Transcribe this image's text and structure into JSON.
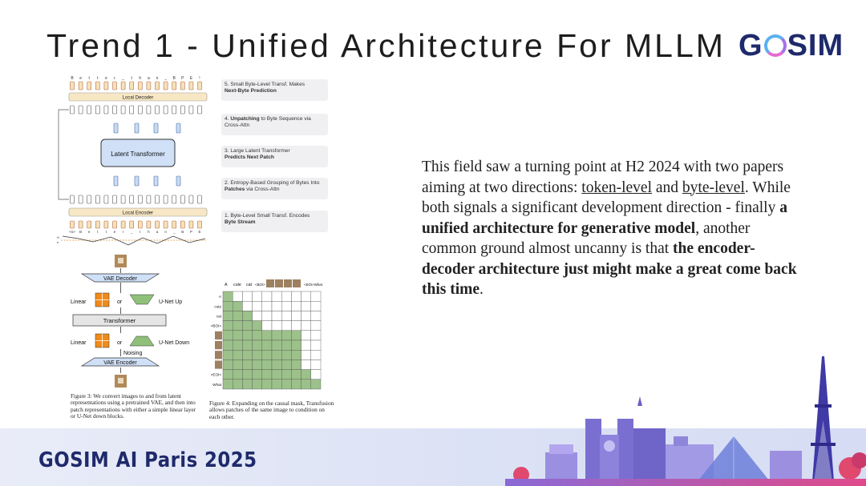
{
  "slide": {
    "title": "Trend 1 - Unified Architecture For MLLM",
    "logo": {
      "part1": "G",
      "part2": "SIM"
    },
    "footer": "GOSIM AI Paris 2025"
  },
  "body": {
    "p1": "This field saw a turning point at H2 2024 with two papers aiming at two directions: ",
    "link1": "token-level",
    "p2": " and ",
    "link2": "byte-level",
    "p3": ". While both signals a significant development direction - finally ",
    "b1": "a unified architecture for generative model",
    "p4": ", another common ground almost uncanny is that ",
    "b2": "the encoder-decoder architecture just might make a great come back this time",
    "p5": "."
  },
  "blt": {
    "top_chars": [
      "B",
      "e",
      "t",
      "t",
      "e",
      "r",
      "_",
      "t",
      "h",
      "a",
      "n",
      "_",
      "B",
      "P",
      "E",
      "!"
    ],
    "bottom_chars": [
      "<s>",
      "B",
      "e",
      "t",
      "t",
      "e",
      "r",
      "_",
      "t",
      "h",
      "a",
      "n",
      "_",
      "B",
      "P",
      "E"
    ],
    "local_decoder": "Local Decoder",
    "local_encoder": "Local Encoder",
    "latent_transformer": "Latent Transformer",
    "steps": [
      {
        "plain": "5. Small Byte-Level Transf. Makes",
        "bold": "Next-Byte Prediction",
        "after": ""
      },
      {
        "plain": "4. ",
        "bold": "Unpatching",
        "after": " to Byte Sequence via Cross-Attn"
      },
      {
        "plain": "3. Large Latent Transformer",
        "bold": "Predicts Next Patch",
        "after": ""
      },
      {
        "plain": "2. Entropy-Based Grouping of Bytes Into ",
        "bold": "Patches",
        "after": " via Cross-Attn"
      },
      {
        "plain": "1. Byte-Level  Small Transf. Encodes",
        "bold": "Byte Stream",
        "after": ""
      }
    ],
    "axis_h": "H",
    "axis_e": "e"
  },
  "transfusion": {
    "vae_decoder": "VAE Decoder",
    "vae_encoder": "VAE Encoder",
    "transformer": "Transformer",
    "linear": "Linear",
    "or": "or",
    "unet_up": "U-Net Up",
    "unet_down": "U-Net Down",
    "noising": "Noising",
    "caption3": "Figure 3: We convert images to and from latent representations using a pretrained VAE, and then into patch representations with either a simple linear layer or U-Net down blocks."
  },
  "mask": {
    "col_labels": [
      "A",
      "cute",
      "cat",
      "<BOI>",
      "<EOI>What"
    ],
    "row_labels": [
      "A",
      "cute",
      "cat",
      "<BOI>",
      "",
      "",
      "",
      "",
      "<EOI>",
      "What"
    ],
    "caption4": "Figure 4: Expanding on the causal mask, Transfusion allows patches of the same image to condition on each other.",
    "colors": {
      "filled": "#9cc18a",
      "empty": "#ffffff",
      "border": "#555555"
    }
  }
}
